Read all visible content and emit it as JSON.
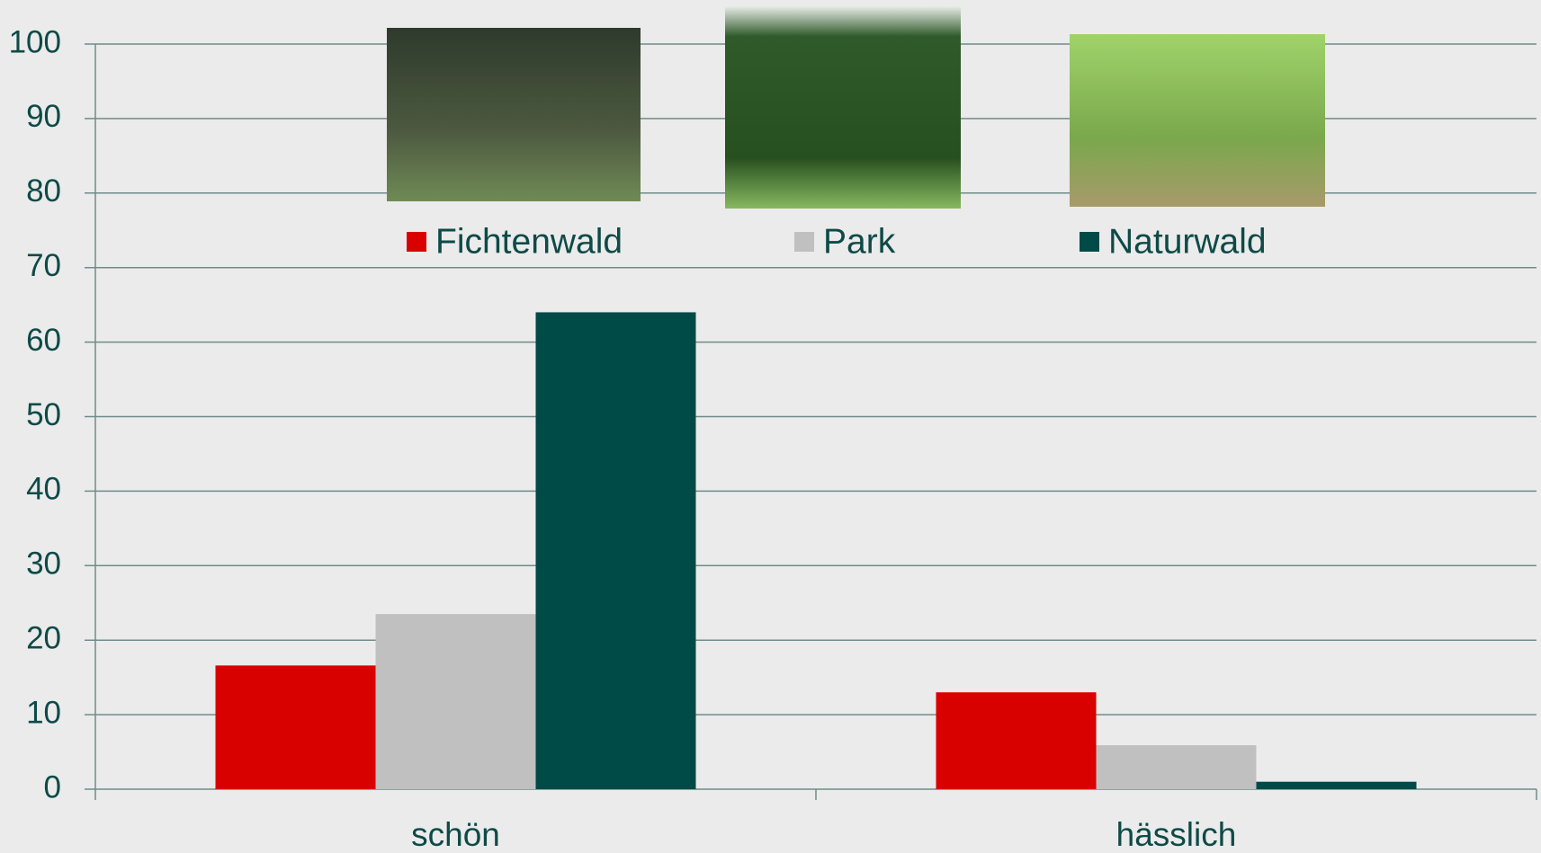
{
  "chart_data": {
    "type": "bar",
    "categories": [
      "schön",
      "hässlich"
    ],
    "series": [
      {
        "name": "Fichtenwald",
        "color": "#d90000",
        "values": [
          16.6,
          13
        ]
      },
      {
        "name": "Park",
        "color": "#c0c0c0",
        "values": [
          23.5,
          5.9
        ]
      },
      {
        "name": "Naturwald",
        "color": "#004a47",
        "values": [
          64,
          1
        ]
      }
    ],
    "ylim": [
      0,
      100
    ],
    "yticks": [
      0,
      10,
      20,
      30,
      40,
      50,
      60,
      70,
      80,
      90,
      100
    ],
    "grid": true
  }
}
